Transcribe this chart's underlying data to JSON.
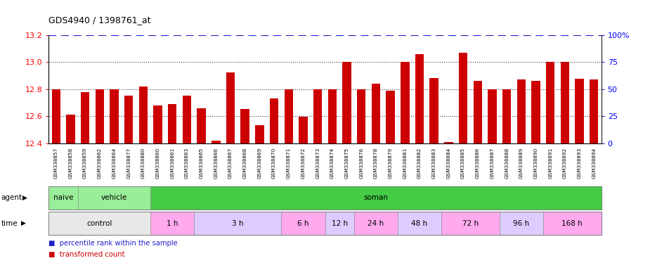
{
  "title": "GDS4940 / 1398761_at",
  "bar_color": "#cc0000",
  "blue_line_color": "#2222cc",
  "ylim_left": [
    12.4,
    13.2
  ],
  "ylim_right": [
    0,
    100
  ],
  "yticks_left": [
    12.4,
    12.6,
    12.8,
    13.0,
    13.2
  ],
  "yticks_right": [
    0,
    25,
    50,
    75,
    100
  ],
  "samples": [
    "GSM338857",
    "GSM338858",
    "GSM338859",
    "GSM338862",
    "GSM338864",
    "GSM338877",
    "GSM338880",
    "GSM338860",
    "GSM338861",
    "GSM338863",
    "GSM338865",
    "GSM338866",
    "GSM338867",
    "GSM338868",
    "GSM338869",
    "GSM338870",
    "GSM338871",
    "GSM338872",
    "GSM338873",
    "GSM338874",
    "GSM338875",
    "GSM338876",
    "GSM338878",
    "GSM338879",
    "GSM338881",
    "GSM338882",
    "GSM338883",
    "GSM338884",
    "GSM338885",
    "GSM338886",
    "GSM338887",
    "GSM338888",
    "GSM338889",
    "GSM338890",
    "GSM338891",
    "GSM338892",
    "GSM338893",
    "GSM338894"
  ],
  "values": [
    12.8,
    12.61,
    12.78,
    12.8,
    12.8,
    12.75,
    12.82,
    12.68,
    12.69,
    12.75,
    12.66,
    12.42,
    12.925,
    12.655,
    12.535,
    12.73,
    12.8,
    12.595,
    12.8,
    12.8,
    13.0,
    12.8,
    12.84,
    12.79,
    13.0,
    13.06,
    12.88,
    12.41,
    13.07,
    12.86,
    12.8,
    12.8,
    12.87,
    12.86,
    13.0,
    13.0,
    12.875,
    12.87
  ],
  "dotted_hlines": [
    12.6,
    12.8,
    13.0
  ],
  "agent_groups": [
    {
      "label": "naive",
      "start": 0,
      "end": 2,
      "color": "#99ee99"
    },
    {
      "label": "vehicle",
      "start": 2,
      "end": 7,
      "color": "#99ee99"
    },
    {
      "label": "soman",
      "start": 7,
      "end": 38,
      "color": "#44cc44"
    }
  ],
  "time_groups": [
    {
      "label": "control",
      "start": 0,
      "end": 7,
      "color": "#e8e8e8"
    },
    {
      "label": "1 h",
      "start": 7,
      "end": 10,
      "color": "#ffaaee"
    },
    {
      "label": "3 h",
      "start": 10,
      "end": 16,
      "color": "#ddccff"
    },
    {
      "label": "6 h",
      "start": 16,
      "end": 19,
      "color": "#ffaaee"
    },
    {
      "label": "12 h",
      "start": 19,
      "end": 21,
      "color": "#ddccff"
    },
    {
      "label": "24 h",
      "start": 21,
      "end": 24,
      "color": "#ffaaee"
    },
    {
      "label": "48 h",
      "start": 24,
      "end": 27,
      "color": "#ddccff"
    },
    {
      "label": "72 h",
      "start": 27,
      "end": 31,
      "color": "#ffaaee"
    },
    {
      "label": "96 h",
      "start": 31,
      "end": 34,
      "color": "#ddccff"
    },
    {
      "label": "168 h",
      "start": 34,
      "end": 38,
      "color": "#ffaaee"
    }
  ],
  "legend": [
    {
      "label": "transformed count",
      "color": "#cc0000"
    },
    {
      "label": "percentile rank within the sample",
      "color": "#2222cc"
    }
  ]
}
